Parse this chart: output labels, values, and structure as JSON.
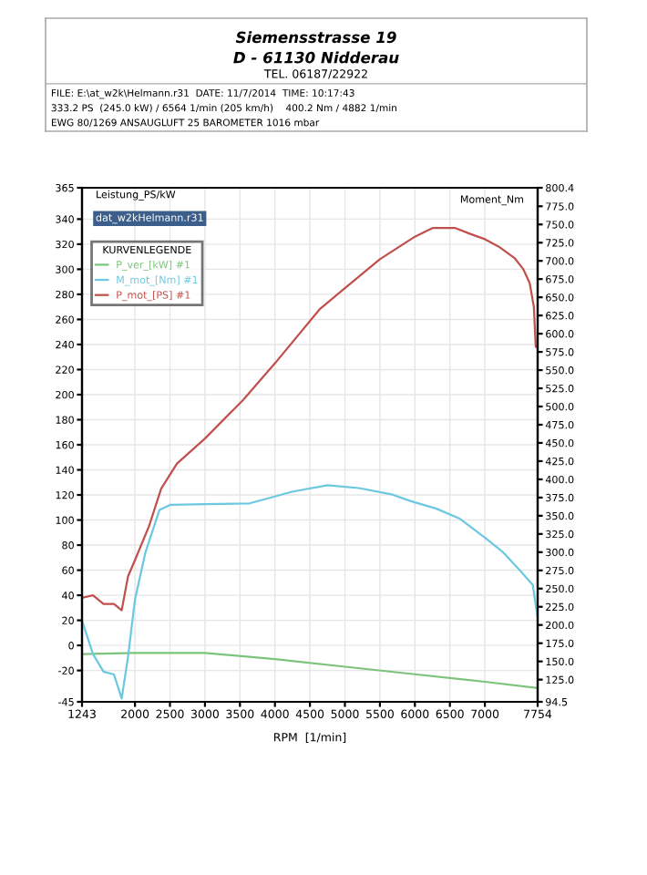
{
  "chart_data": {
    "type": "line",
    "annotations": [
      "Siemensstrasse 19",
      "D - 61130 Nidderau",
      "TEL. 06187/22922",
      "FILE: E:\\at_w2k\\Helmann.r31  DATE: 11/7/2014  TIME: 10:17:43",
      "333.2 PS  (245.0 kW) / 6564 1/min (205 km/h)    400.2 Nm / 4882 1/min",
      "EWG 80/1269 ANSAUGLUFT 25 BAROMETER 1016 mbar",
      "dat_w2kHelmann.r31"
    ],
    "xlabel": "RPM  [1/min]",
    "ylabel": "Leistung_PS/kW",
    "y2label": "Moment_Nm",
    "legend_title": "KURVENLEGENDE",
    "xlim": [
      1243,
      7754
    ],
    "xticks": [
      1243,
      2000,
      2500,
      3000,
      3500,
      4000,
      4500,
      5000,
      5500,
      6000,
      6500,
      7000,
      7754
    ],
    "ylim": [
      -45,
      365
    ],
    "yticks": [
      -45,
      -20,
      0,
      20,
      40,
      60,
      80,
      100,
      120,
      140,
      160,
      180,
      200,
      220,
      240,
      260,
      280,
      300,
      320,
      340,
      365
    ],
    "y2lim": [
      94.5,
      800.4
    ],
    "y2ticks": [
      {
        "value": 94.5,
        "label": "94.5"
      },
      {
        "value": 125,
        "label": "125.0"
      },
      {
        "value": 150,
        "label": "150.0"
      },
      {
        "value": 175,
        "label": "175.0"
      },
      {
        "value": 200,
        "label": "200.0"
      },
      {
        "value": 225,
        "label": "225.0"
      },
      {
        "value": 250,
        "label": "250.0"
      },
      {
        "value": 275,
        "label": "275.0"
      },
      {
        "value": 300,
        "label": "300.0"
      },
      {
        "value": 325,
        "label": "325.0"
      },
      {
        "value": 350,
        "label": "350.0"
      },
      {
        "value": 375,
        "label": "375.0"
      },
      {
        "value": 400,
        "label": "400.0"
      },
      {
        "value": 425,
        "label": "425.0"
      },
      {
        "value": 450,
        "label": "450.0"
      },
      {
        "value": 475,
        "label": "475.0"
      },
      {
        "value": 500,
        "label": "500.0"
      },
      {
        "value": 525,
        "label": "525.0"
      },
      {
        "value": 550,
        "label": "550.0"
      },
      {
        "value": 575,
        "label": "575.0"
      },
      {
        "value": 600,
        "label": "600.0"
      },
      {
        "value": 625,
        "label": "625.0"
      },
      {
        "value": 650,
        "label": "650.0"
      },
      {
        "value": 675,
        "label": "675.0"
      },
      {
        "value": 700,
        "label": "700.0"
      },
      {
        "value": 725,
        "label": "725.0"
      },
      {
        "value": 750,
        "label": "750.0"
      },
      {
        "value": 775,
        "label": "775.0"
      },
      {
        "value": 800.4,
        "label": "800.4"
      }
    ],
    "grid": true,
    "legend": "top left",
    "marker": "none",
    "line_style": "solid",
    "series": [
      {
        "name": "P_ver_[kW] #1",
        "color": "#7cc47c",
        "x": [
          1243,
          2000,
          3000,
          4000,
          5000,
          6000,
          7000,
          7754
        ],
        "values": [
          -7,
          -6,
          -6,
          -11,
          -17,
          -23,
          -29,
          -34
        ]
      },
      {
        "name": "M_mot_[Nm] #1",
        "color": "#6cc8e0",
        "axis": "y2",
        "x": [
          1243,
          1400,
          1550,
          1700,
          1810,
          1900,
          2000,
          2150,
          2350,
          2500,
          3000,
          3637,
          4246,
          4750,
          5200,
          5682,
          5943,
          6300,
          6640,
          7000,
          7248,
          7500,
          7684,
          7730,
          7754
        ],
        "values": [
          206,
          160,
          136,
          132,
          99,
          156,
          235,
          300,
          358,
          365,
          366,
          367,
          383,
          392,
          388,
          379,
          370,
          360,
          346,
          320,
          301,
          275,
          255,
          225,
          210
        ]
      },
      {
        "name": "P_mot_[PS] #1",
        "color": "#c0504d",
        "x": [
          1243,
          1400,
          1550,
          1700,
          1810,
          1900,
          2000,
          2200,
          2374,
          2600,
          3000,
          3549,
          4000,
          4637,
          5000,
          5500,
          6000,
          6258,
          6570,
          6800,
          7000,
          7200,
          7423,
          7550,
          7640,
          7700,
          7727,
          7754
        ],
        "values": [
          38,
          40,
          33,
          33,
          28,
          55,
          68,
          95,
          125,
          145,
          165,
          196,
          225,
          268,
          285,
          308,
          326,
          333,
          333,
          328,
          324,
          318,
          309,
          300,
          289,
          270,
          238,
          238
        ]
      }
    ]
  }
}
